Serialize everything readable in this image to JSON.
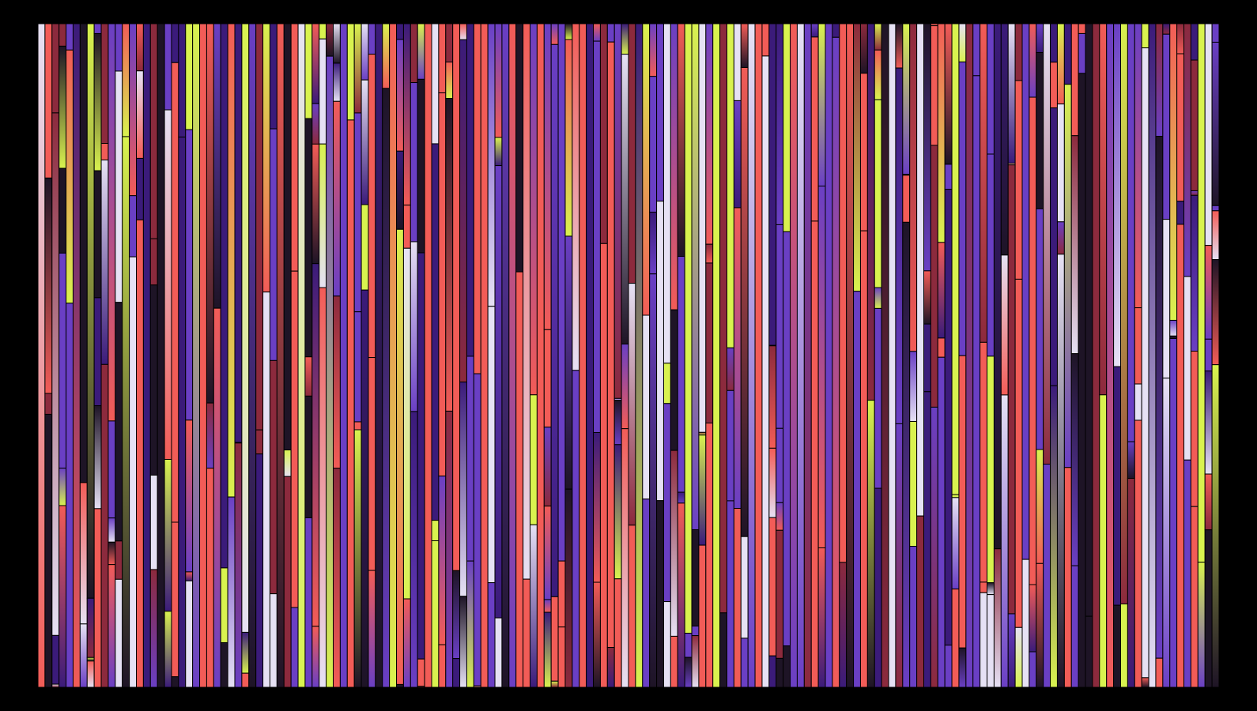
{
  "artwork": {
    "background_color": "#000000",
    "palette": {
      "yellow": "#d9f24f",
      "white": "#e6e1f4",
      "coral": "#f25c57",
      "purple": "#6a3fc4",
      "deep_purple": "#3b1b7a",
      "dark": "#1e1426",
      "burgundy": "#8c2a3d"
    },
    "stripe_count": 168,
    "seed": 73
  }
}
